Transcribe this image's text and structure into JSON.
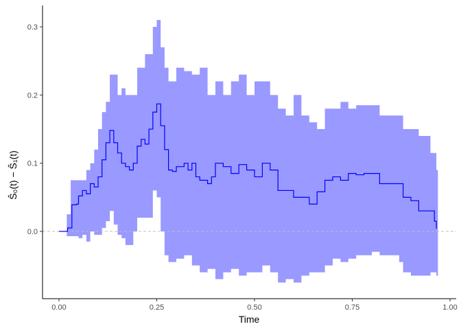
{
  "chart_data": {
    "type": "line",
    "title": "",
    "xlabel": "Time",
    "ylabel": "Ŝ₀(t) − Ŝ₁(t)",
    "xlim": [
      -0.045,
      1.005
    ],
    "ylim": [
      -0.1,
      0.33
    ],
    "xticks": [
      0.0,
      0.25,
      0.5,
      0.75,
      1.0
    ],
    "xtick_labels": [
      "0.00",
      "0.25",
      "0.50",
      "0.75",
      "1.00"
    ],
    "yticks": [
      0.0,
      0.1,
      0.2,
      0.3
    ],
    "ytick_labels": [
      "0.0",
      "0.1",
      "0.2",
      "0.3"
    ],
    "grid": false,
    "reference_line": {
      "y": 0,
      "style": "dashed",
      "color": "#bdbdbd"
    },
    "colors": {
      "line": "#0000ff",
      "ribbon": "#9999ff"
    },
    "estimate": {
      "x": [
        0.0,
        0.012,
        0.022,
        0.033,
        0.045,
        0.05,
        0.06,
        0.07,
        0.08,
        0.09,
        0.1,
        0.11,
        0.12,
        0.13,
        0.14,
        0.15,
        0.16,
        0.17,
        0.18,
        0.19,
        0.2,
        0.21,
        0.22,
        0.23,
        0.24,
        0.25,
        0.26,
        0.27,
        0.28,
        0.29,
        0.3,
        0.32,
        0.33,
        0.34,
        0.35,
        0.36,
        0.38,
        0.39,
        0.4,
        0.42,
        0.44,
        0.46,
        0.48,
        0.5,
        0.52,
        0.54,
        0.56,
        0.58,
        0.6,
        0.62,
        0.64,
        0.66,
        0.68,
        0.7,
        0.72,
        0.74,
        0.76,
        0.78,
        0.8,
        0.82,
        0.85,
        0.87,
        0.88,
        0.9,
        0.92,
        0.95,
        0.96,
        0.965
      ],
      "y": [
        0.0,
        0.0,
        0.005,
        0.039,
        0.04,
        0.052,
        0.06,
        0.055,
        0.07,
        0.065,
        0.08,
        0.105,
        0.13,
        0.148,
        0.13,
        0.115,
        0.1,
        0.095,
        0.09,
        0.1,
        0.125,
        0.135,
        0.128,
        0.15,
        0.175,
        0.187,
        0.155,
        0.12,
        0.09,
        0.088,
        0.095,
        0.1,
        0.09,
        0.1,
        0.08,
        0.075,
        0.07,
        0.08,
        0.1,
        0.095,
        0.085,
        0.098,
        0.09,
        0.08,
        0.1,
        0.09,
        0.06,
        0.06,
        0.05,
        0.05,
        0.04,
        0.058,
        0.075,
        0.08,
        0.075,
        0.085,
        0.083,
        0.085,
        0.085,
        0.07,
        0.07,
        0.07,
        0.05,
        0.045,
        0.03,
        0.03,
        0.015,
        0.004
      ]
    },
    "confidence_band": {
      "x": [
        0.012,
        0.02,
        0.03,
        0.05,
        0.06,
        0.07,
        0.08,
        0.09,
        0.1,
        0.11,
        0.12,
        0.13,
        0.14,
        0.15,
        0.16,
        0.17,
        0.19,
        0.2,
        0.22,
        0.24,
        0.25,
        0.26,
        0.27,
        0.28,
        0.3,
        0.32,
        0.34,
        0.36,
        0.38,
        0.4,
        0.42,
        0.44,
        0.46,
        0.48,
        0.5,
        0.52,
        0.54,
        0.56,
        0.58,
        0.6,
        0.62,
        0.64,
        0.66,
        0.68,
        0.7,
        0.72,
        0.74,
        0.76,
        0.8,
        0.82,
        0.85,
        0.87,
        0.88,
        0.9,
        0.92,
        0.95,
        0.965
      ],
      "upper": [
        0.0,
        0.025,
        0.075,
        0.075,
        0.075,
        0.09,
        0.1,
        0.12,
        0.15,
        0.175,
        0.19,
        0.23,
        0.23,
        0.2,
        0.21,
        0.2,
        0.2,
        0.24,
        0.26,
        0.3,
        0.31,
        0.27,
        0.24,
        0.22,
        0.24,
        0.235,
        0.23,
        0.24,
        0.2,
        0.22,
        0.2,
        0.22,
        0.23,
        0.2,
        0.22,
        0.22,
        0.2,
        0.18,
        0.17,
        0.2,
        0.17,
        0.16,
        0.15,
        0.18,
        0.18,
        0.19,
        0.18,
        0.185,
        0.185,
        0.17,
        0.17,
        0.17,
        0.15,
        0.15,
        0.14,
        0.115,
        0.09
      ],
      "lower": [
        0.0,
        -0.007,
        -0.007,
        -0.01,
        -0.005,
        -0.015,
        0.0,
        -0.005,
        -0.005,
        0.005,
        0.015,
        0.03,
        0.01,
        -0.005,
        -0.01,
        -0.02,
        0.0,
        0.02,
        0.02,
        0.06,
        0.05,
        0.0,
        -0.035,
        -0.045,
        -0.04,
        -0.035,
        -0.05,
        -0.06,
        -0.055,
        -0.07,
        -0.06,
        -0.055,
        -0.065,
        -0.06,
        -0.06,
        -0.05,
        -0.06,
        -0.075,
        -0.07,
        -0.075,
        -0.065,
        -0.06,
        -0.06,
        -0.05,
        -0.04,
        -0.045,
        -0.04,
        -0.035,
        -0.03,
        -0.035,
        -0.035,
        -0.045,
        -0.06,
        -0.065,
        -0.065,
        -0.06,
        -0.065
      ]
    }
  }
}
